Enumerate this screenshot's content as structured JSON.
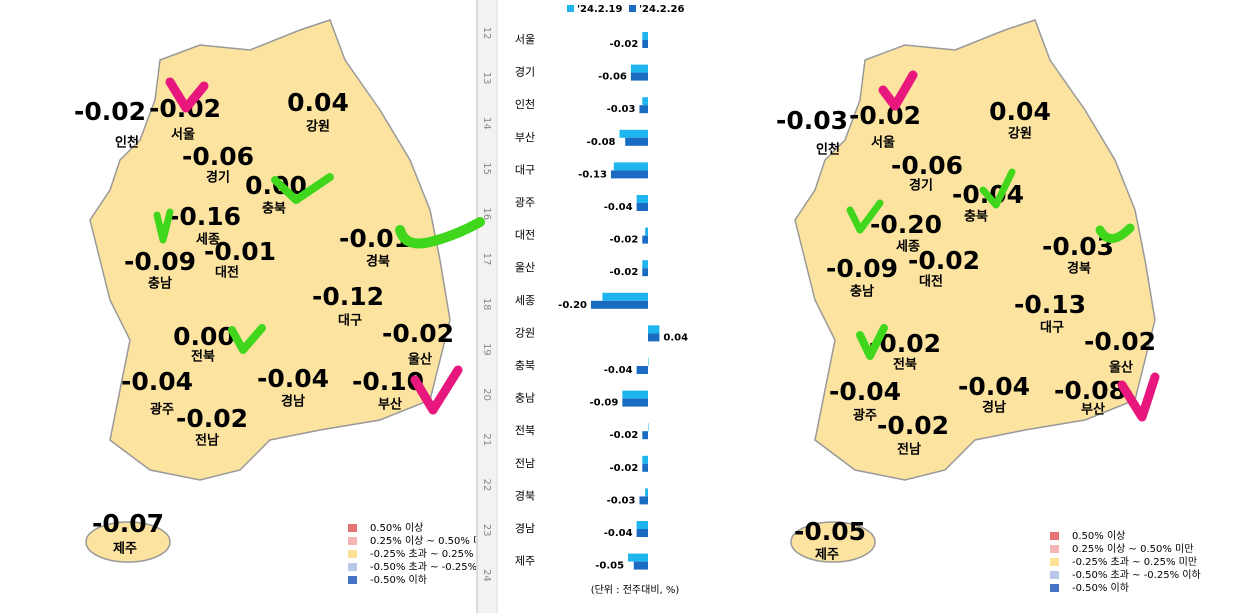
{
  "chart_data": {
    "type": "bar",
    "categories": [
      "서울",
      "경기",
      "인천",
      "부산",
      "대구",
      "광주",
      "대전",
      "울산",
      "세종",
      "강원",
      "충북",
      "충남",
      "전북",
      "전남",
      "경북",
      "경남",
      "제주"
    ],
    "series": [
      {
        "name": "'24.2.19",
        "color": "#1eb4ee",
        "values": [
          -0.02,
          -0.06,
          -0.02,
          -0.1,
          -0.12,
          -0.04,
          -0.01,
          -0.02,
          -0.16,
          0.04,
          0,
          -0.09,
          0,
          -0.02,
          -0.01,
          -0.04,
          -0.07
        ],
        "value_labels": [
          "-0.02",
          "-0.06",
          "-0.02",
          "-0.10",
          "-0.12",
          "-0.04",
          "-0.01",
          "-0.02",
          "-0.16",
          "0.04",
          "0.00",
          "-0.09",
          "0.00",
          "-0.02",
          "-0.01",
          "-0.04",
          "-0.07"
        ]
      },
      {
        "name": "'24.2.26",
        "color": "#1a6cc2",
        "values": [
          -0.02,
          -0.06,
          -0.03,
          -0.08,
          -0.13,
          -0.04,
          -0.02,
          -0.02,
          -0.2,
          0.04,
          -0.04,
          -0.09,
          -0.02,
          -0.02,
          -0.03,
          -0.04,
          -0.05
        ],
        "value_labels": [
          "-0.02",
          "-0.06",
          "-0.03",
          "-0.08",
          "-0.13",
          "-0.04",
          "-0.02",
          "-0.02",
          "-0.20",
          "0.04",
          "-0.04",
          "-0.09",
          "-0.02",
          "-0.02",
          "-0.03",
          "-0.04",
          "-0.05"
        ]
      }
    ],
    "unit_note": "(단위 : 전주대비, %)",
    "row_numbers": [
      "12",
      "13",
      "14",
      "15",
      "16",
      "17",
      "18",
      "19",
      "20",
      "21",
      "22",
      "23",
      "24"
    ]
  },
  "map_legend": {
    "items": [
      {
        "label": "0.50% 이상",
        "color": "#e57373"
      },
      {
        "label": "0.25% 이상 ~ 0.50% 미만",
        "color": "#f5b5b5"
      },
      {
        "label": "-0.25% 초과 ~ 0.25% 미만",
        "color": "#fde196"
      },
      {
        "label": "-0.50% 초과 ~ -0.25% 이하",
        "color": "#b9c8e8"
      },
      {
        "label": "-0.50% 이하",
        "color": "#4472c4"
      }
    ]
  }
}
